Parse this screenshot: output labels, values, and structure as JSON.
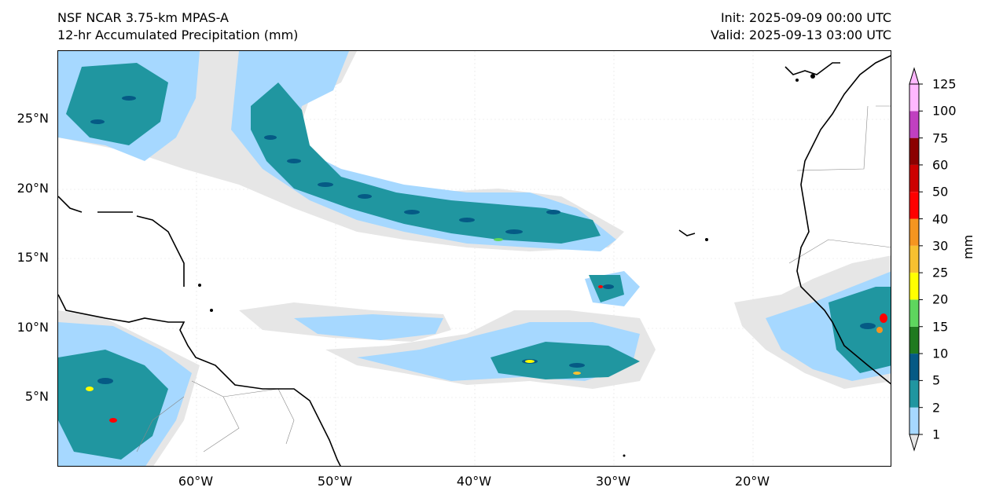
{
  "header": {
    "title_line1": "NSF NCAR 3.75-km MPAS-A",
    "title_line2": "12-hr Accumulated Precipitation (mm)",
    "init": "Init: 2025-09-09 00:00 UTC",
    "valid": "Valid: 2025-09-13 03:00 UTC"
  },
  "map": {
    "lat_labels": [
      "25°N",
      "20°N",
      "15°N",
      "10°N",
      "5°N"
    ],
    "lon_labels": [
      "60°W",
      "50°W",
      "40°W",
      "30°W",
      "20°W"
    ],
    "coast_color": "#000000",
    "border_color": "#888888"
  },
  "colorbar": {
    "unit": "mm",
    "ticks": [
      "1",
      "2",
      "5",
      "10",
      "15",
      "20",
      "25",
      "30",
      "40",
      "50",
      "60",
      "75",
      "100",
      "125"
    ],
    "colors": [
      "#e6e6e6",
      "#a6d8ff",
      "#2096a0",
      "#055a85",
      "#1f7a1f",
      "#5ed65e",
      "#ffff00",
      "#f7c030",
      "#f59520",
      "#ff0000",
      "#cc0000",
      "#8b0000",
      "#c040c0",
      "#ffb8ff"
    ]
  }
}
